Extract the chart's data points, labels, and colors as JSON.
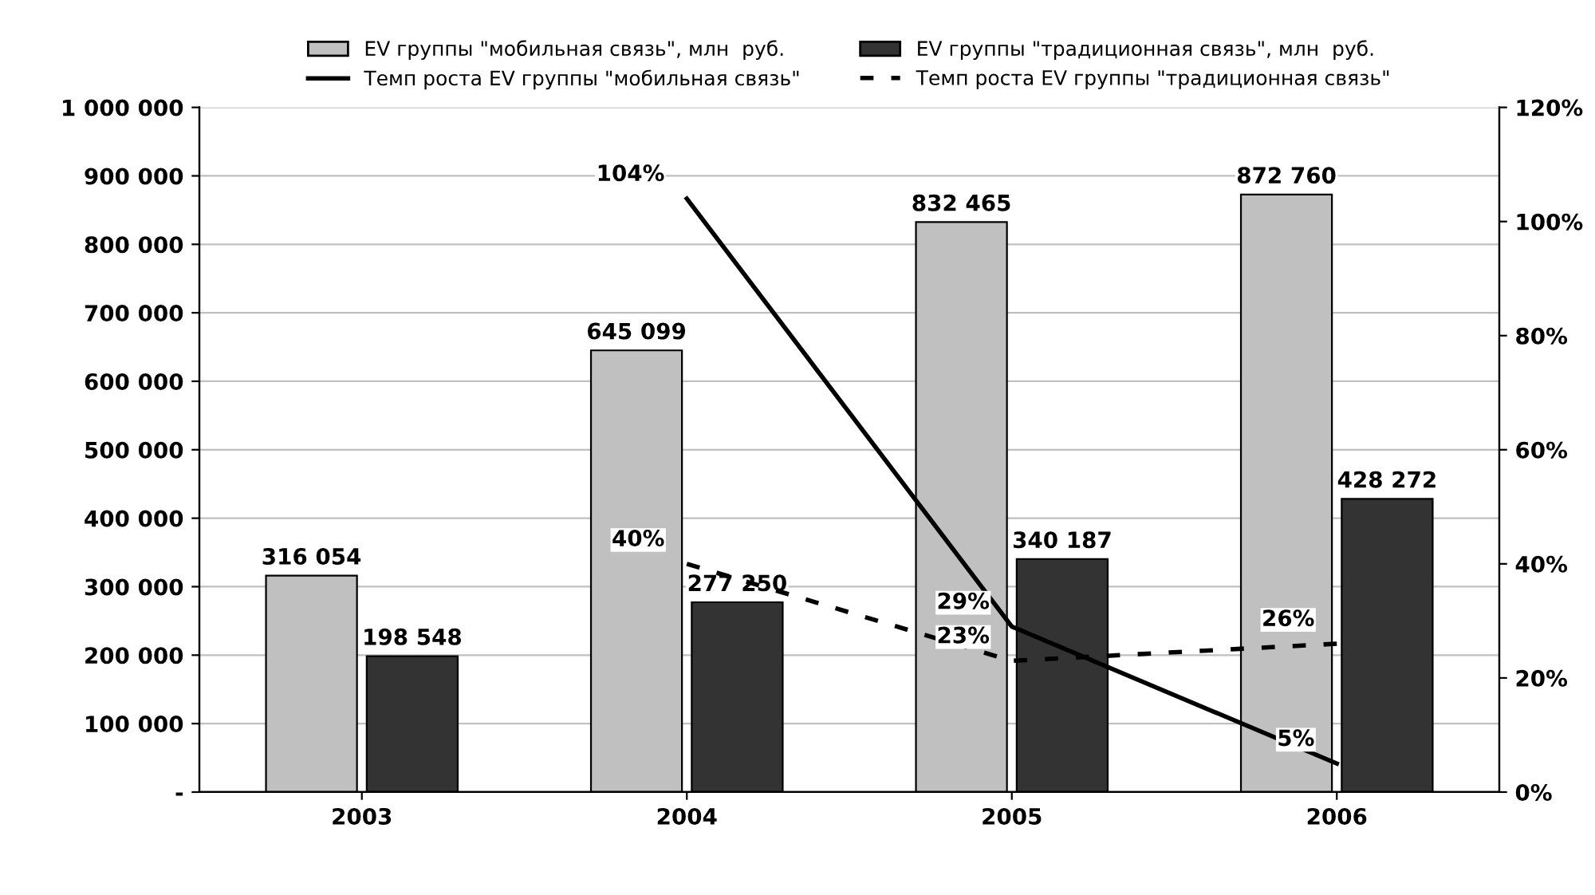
{
  "chart_data": {
    "type": "bar",
    "categories": [
      "2003",
      "2004",
      "2005",
      "2006"
    ],
    "series": [
      {
        "name": "EV группы \"мобильная связь\", млн  руб.",
        "color": "#c0c0c0",
        "values": [
          316054,
          645099,
          832465,
          872760
        ],
        "value_labels": [
          "316 054",
          "645 099",
          "832 465",
          "872 760"
        ]
      },
      {
        "name": "EV группы \"традиционная связь\", млн  руб.",
        "color": "#333333",
        "values": [
          198548,
          277250,
          340187,
          428272
        ],
        "value_labels": [
          "198 548",
          "277 250",
          "340 187",
          "428 272"
        ]
      },
      {
        "name": "Темп роста EV группы \"мобильная связь\"",
        "type": "line",
        "axis": "y2",
        "color": "#000000",
        "line_style": "solid",
        "values": [
          null,
          104,
          29,
          5
        ],
        "value_labels": [
          null,
          "104%",
          "29%",
          "5%"
        ]
      },
      {
        "name": "Темп роста EV группы \"традиционная связь\"",
        "type": "line",
        "axis": "y2",
        "color": "#000000",
        "line_style": "dashed",
        "values": [
          null,
          40,
          23,
          26
        ],
        "value_labels": [
          null,
          "40%",
          "23%",
          "26%"
        ]
      }
    ],
    "ylim": [
      0,
      1000000
    ],
    "yticks": [
      {
        "value": 0,
        "label": "-"
      },
      {
        "value": 100000,
        "label": "100 000"
      },
      {
        "value": 200000,
        "label": "200 000"
      },
      {
        "value": 300000,
        "label": "300 000"
      },
      {
        "value": 400000,
        "label": "400 000"
      },
      {
        "value": 500000,
        "label": "500 000"
      },
      {
        "value": 600000,
        "label": "600 000"
      },
      {
        "value": 700000,
        "label": "700 000"
      },
      {
        "value": 800000,
        "label": "800 000"
      },
      {
        "value": 900000,
        "label": "900 000"
      },
      {
        "value": 1000000,
        "label": "1 000 000"
      }
    ],
    "y2lim": [
      0,
      120
    ],
    "y2ticks": [
      {
        "value": 0,
        "label": "0%"
      },
      {
        "value": 20,
        "label": "20%"
      },
      {
        "value": 40,
        "label": "40%"
      },
      {
        "value": 60,
        "label": "60%"
      },
      {
        "value": 80,
        "label": "80%"
      },
      {
        "value": 100,
        "label": "100%"
      },
      {
        "value": 120,
        "label": "120%"
      }
    ],
    "grid": "y",
    "legend": "top",
    "marker": "none"
  }
}
